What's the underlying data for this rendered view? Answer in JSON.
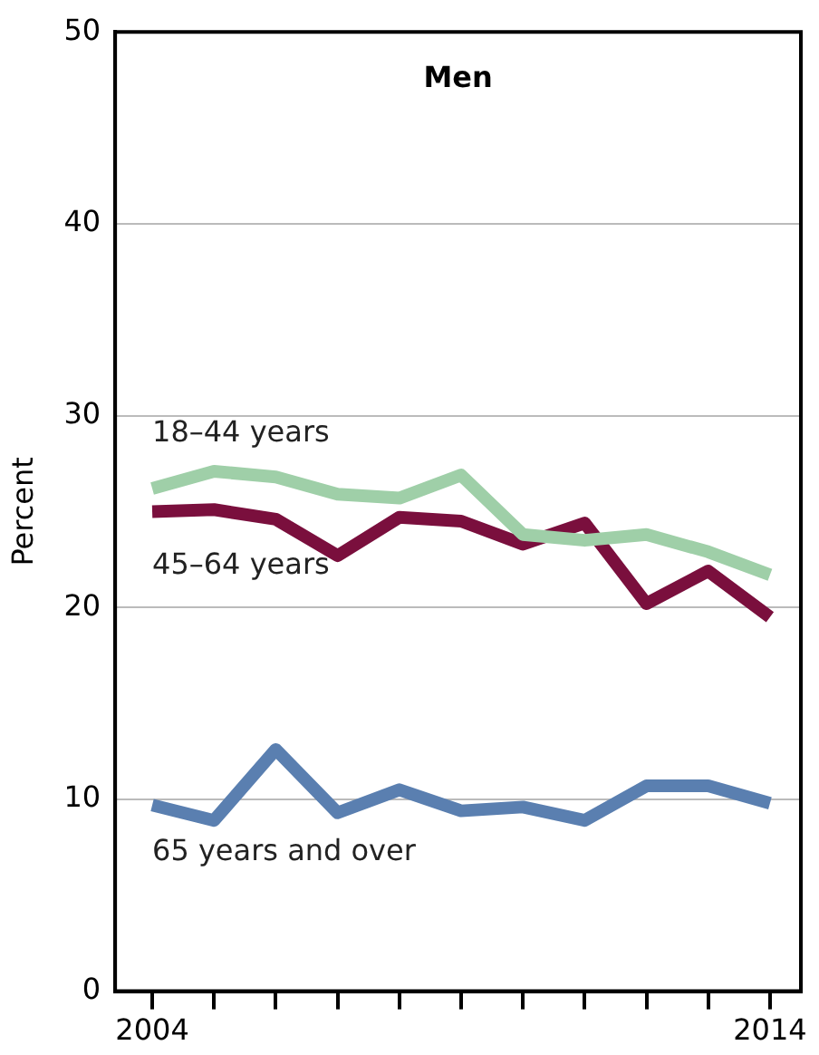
{
  "chart_data": {
    "type": "line",
    "title": "Men",
    "ylabel": "Percent",
    "x": [
      2004,
      2005,
      2006,
      2007,
      2008,
      2009,
      2010,
      2011,
      2012,
      2013,
      2014
    ],
    "xlim": [
      2003.4,
      2014.5
    ],
    "xticks": [
      2004,
      {
        "value": 2005,
        "label": null
      },
      {
        "value": 2006,
        "label": null
      },
      {
        "value": 2007,
        "label": null
      },
      {
        "value": 2008,
        "label": null
      },
      {
        "value": 2009,
        "label": null
      },
      {
        "value": 2010,
        "label": null
      },
      {
        "value": 2011,
        "label": null
      },
      {
        "value": 2012,
        "label": null
      },
      {
        "value": 2013,
        "label": null
      },
      2014
    ],
    "ylim": [
      0,
      50
    ],
    "yticks": [
      0,
      10,
      20,
      30,
      40,
      50
    ],
    "grid": "y",
    "legend": false,
    "marker": "none",
    "line_style": "solid",
    "series": [
      {
        "name": "18–44 years",
        "color": "#9fcfa8",
        "values": [
          26.2,
          27.1,
          26.8,
          25.9,
          25.7,
          26.9,
          23.8,
          23.5,
          23.8,
          22.9,
          21.7
        ]
      },
      {
        "name": "45–64 years",
        "color": "#7a0f3d",
        "values": [
          25.0,
          25.1,
          24.6,
          22.7,
          24.7,
          24.5,
          23.3,
          24.4,
          20.2,
          21.9,
          19.5
        ]
      },
      {
        "name": "65 years and over",
        "color": "#5a7fb0",
        "values": [
          9.7,
          8.9,
          12.6,
          9.3,
          10.5,
          9.4,
          9.6,
          8.9,
          10.7,
          10.7,
          9.8
        ]
      }
    ]
  }
}
